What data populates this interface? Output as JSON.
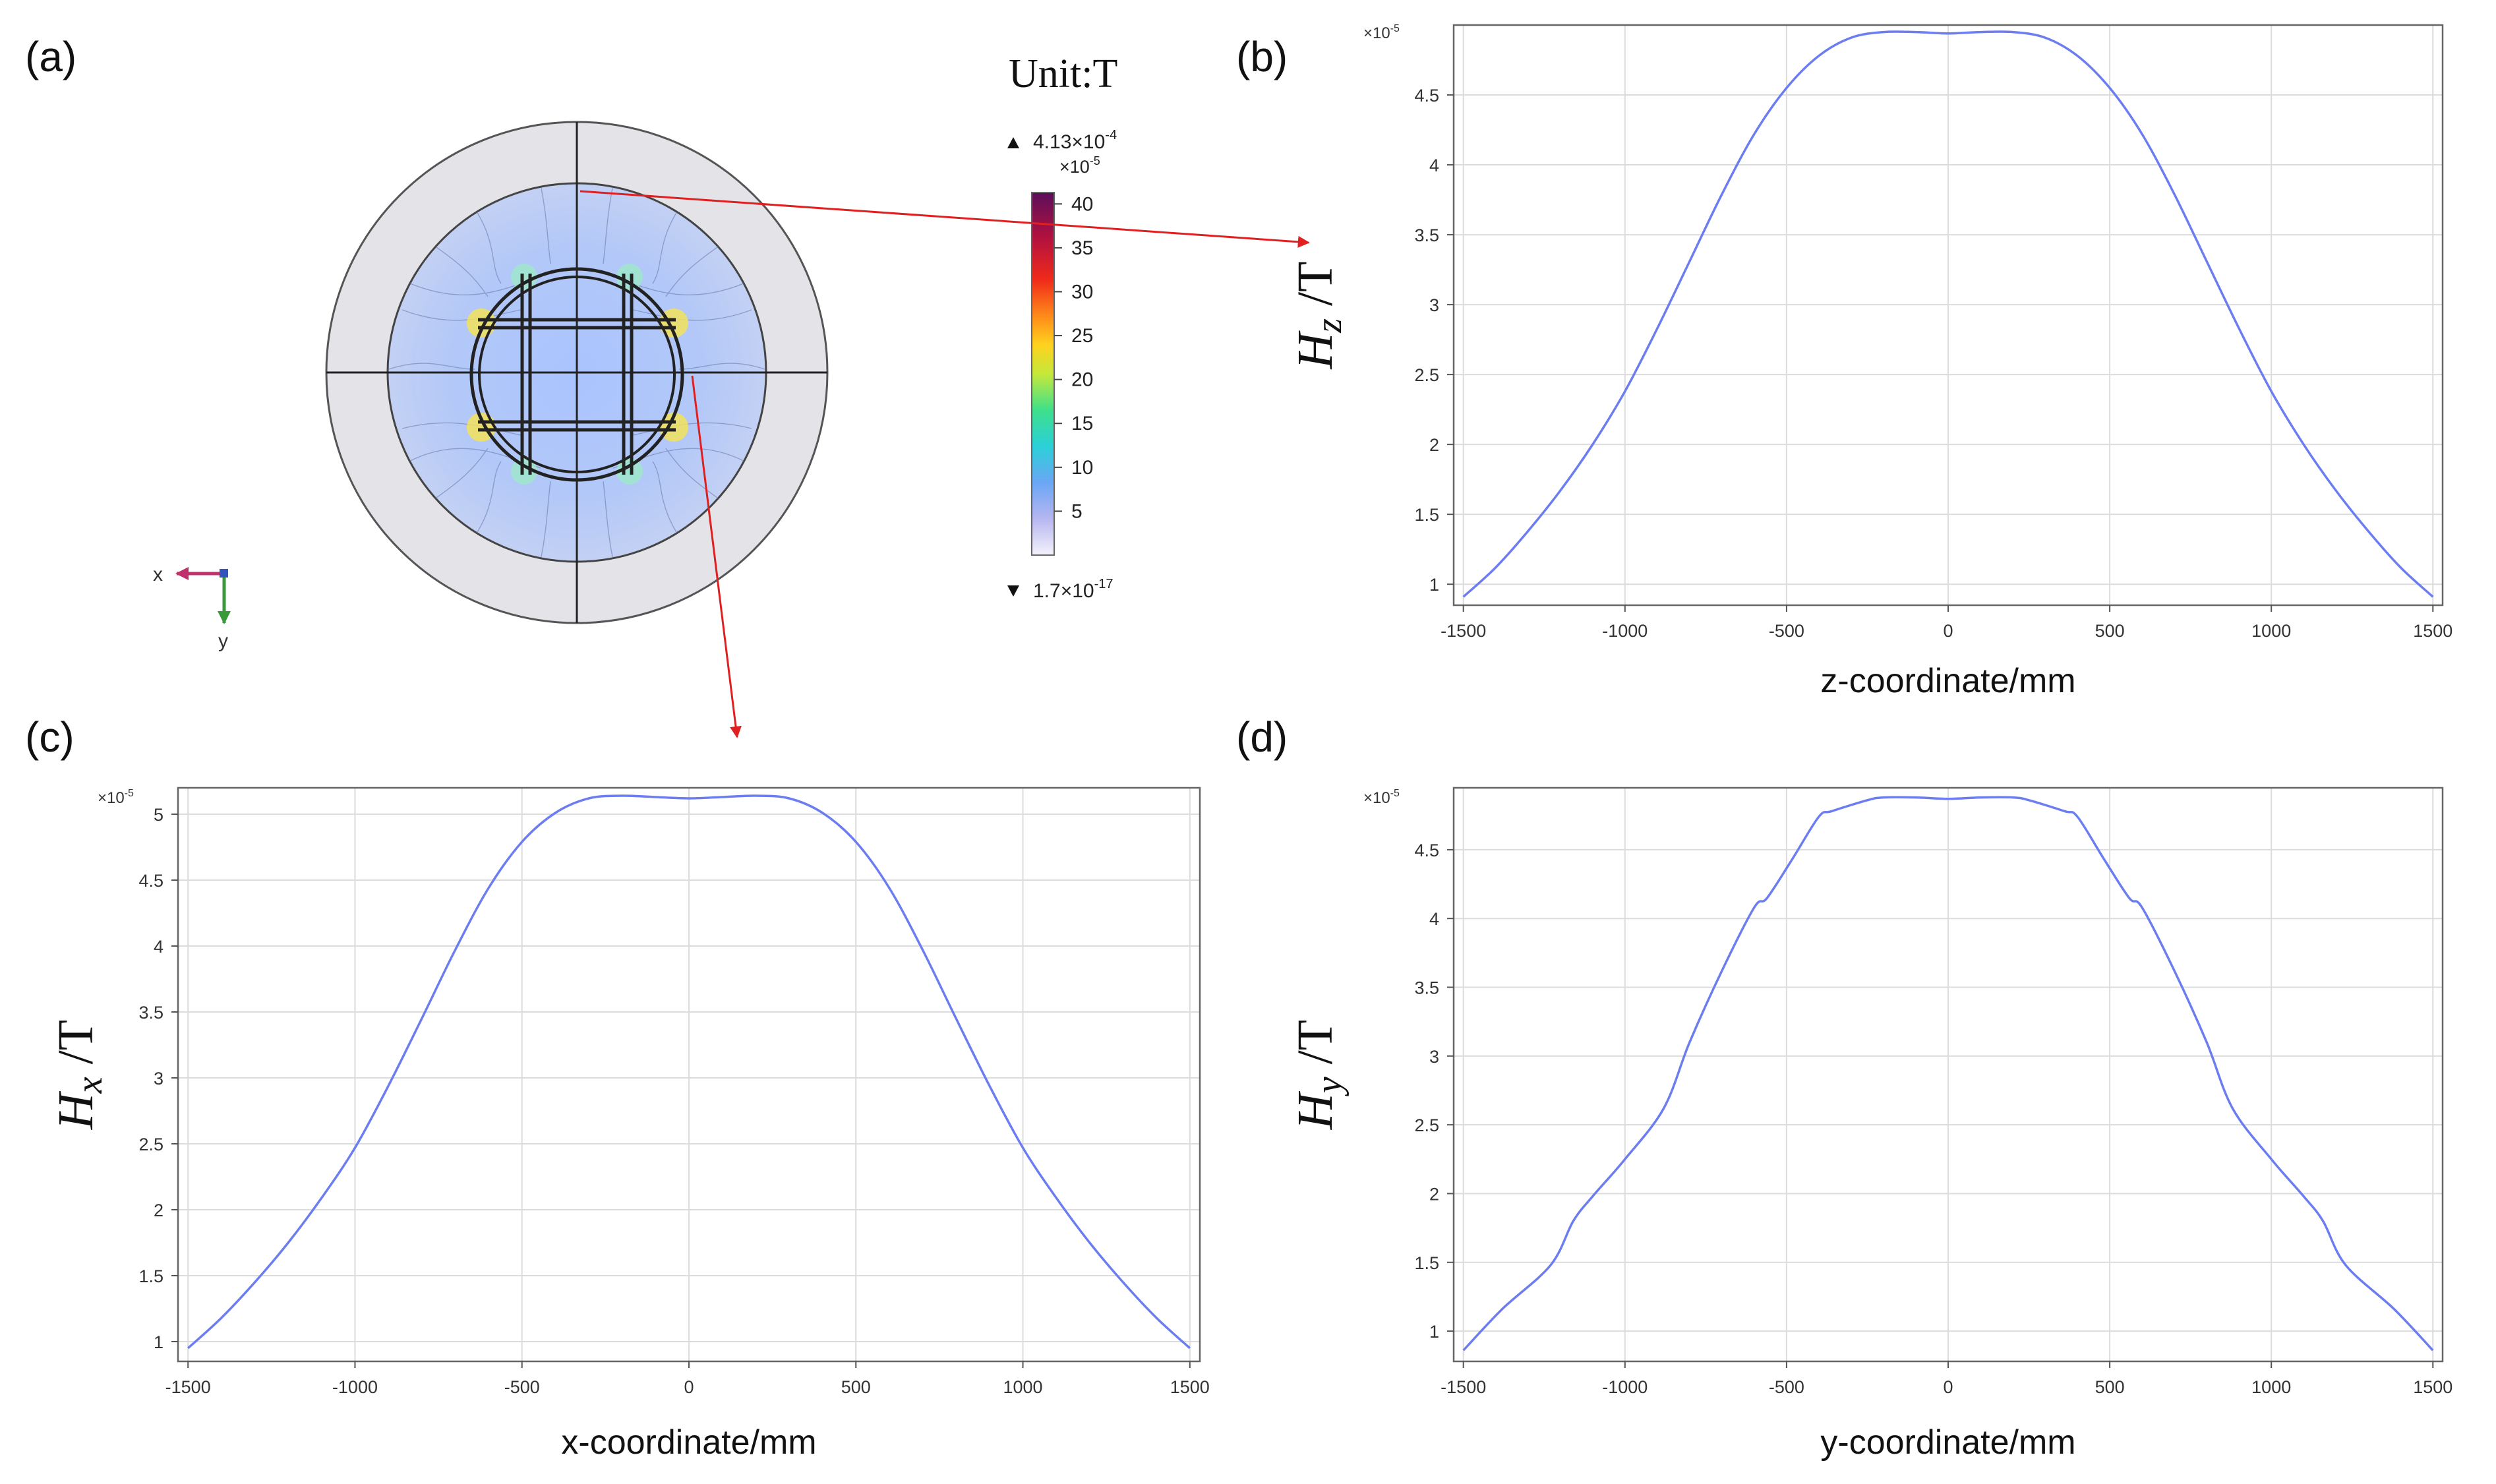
{
  "colors": {
    "curve": "#6b7df0",
    "arrow": "#e02020"
  },
  "panel_a": {
    "label": "(a)",
    "unit_label": "Unit:T",
    "max_value": "4.13×10",
    "max_exp": "-4",
    "min_value": "1.7×10",
    "min_exp": "-17",
    "colorbar_scale": "×10",
    "colorbar_scale_exp": "-5",
    "colorbar_ticks": [
      "40",
      "35",
      "30",
      "25",
      "20",
      "15",
      "10",
      "5"
    ],
    "axis_x": "x",
    "axis_y": "y"
  },
  "chart_data": [
    {
      "id": "b",
      "label": "(b)",
      "type": "line",
      "ylabel_base": "H",
      "ylabel_sub": "z",
      "ylabel_unit": " /T",
      "xlabel": "z-coordinate/mm",
      "scale": "×10",
      "scale_exp": "-5",
      "xlim": [
        -1530,
        1530
      ],
      "ylim": [
        0.85,
        5.0
      ],
      "xticks": [
        -1500,
        -1000,
        -500,
        0,
        500,
        1000,
        1500
      ],
      "yticks": [
        1,
        1.5,
        2,
        2.5,
        3,
        3.5,
        4,
        4.5
      ],
      "ytick_labels": [
        "1",
        "1.5",
        "2",
        "2.5",
        "3",
        "3.5",
        "4",
        "4.5"
      ],
      "x": [
        -1500,
        -1400,
        -1300,
        -1200,
        -1100,
        -1000,
        -900,
        -800,
        -700,
        -600,
        -500,
        -400,
        -300,
        -200,
        -100,
        0,
        100,
        200,
        300,
        400,
        500,
        600,
        700,
        800,
        900,
        1000,
        1100,
        1200,
        1300,
        1400,
        1500
      ],
      "y": [
        0.91,
        1.12,
        1.38,
        1.67,
        2.0,
        2.38,
        2.83,
        3.31,
        3.79,
        4.22,
        4.55,
        4.78,
        4.91,
        4.95,
        4.95,
        4.94,
        4.95,
        4.95,
        4.91,
        4.78,
        4.55,
        4.22,
        3.79,
        3.31,
        2.83,
        2.38,
        2.0,
        1.67,
        1.38,
        1.12,
        0.91
      ]
    },
    {
      "id": "c",
      "label": "(c)",
      "type": "line",
      "ylabel_base": "H",
      "ylabel_sub": "x",
      "ylabel_unit": " /T",
      "xlabel": "x-coordinate/mm",
      "scale": "×10",
      "scale_exp": "-5",
      "xlim": [
        -1530,
        1530
      ],
      "ylim": [
        0.85,
        5.2
      ],
      "xticks": [
        -1500,
        -1000,
        -500,
        0,
        500,
        1000,
        1500
      ],
      "yticks": [
        1,
        1.5,
        2,
        2.5,
        3,
        3.5,
        4,
        4.5,
        5
      ],
      "ytick_labels": [
        "1",
        "1.5",
        "2",
        "2.5",
        "3",
        "3.5",
        "4",
        "4.5",
        "5"
      ],
      "x": [
        -1500,
        -1400,
        -1300,
        -1200,
        -1100,
        -1000,
        -900,
        -800,
        -700,
        -600,
        -500,
        -400,
        -300,
        -200,
        -100,
        0,
        100,
        200,
        300,
        400,
        500,
        600,
        700,
        800,
        900,
        1000,
        1100,
        1200,
        1300,
        1400,
        1500
      ],
      "y": [
        0.95,
        1.18,
        1.45,
        1.75,
        2.09,
        2.47,
        2.94,
        3.45,
        3.97,
        4.44,
        4.79,
        5.01,
        5.12,
        5.14,
        5.13,
        5.12,
        5.13,
        5.14,
        5.12,
        5.01,
        4.79,
        4.44,
        3.97,
        3.45,
        2.94,
        2.47,
        2.09,
        1.75,
        1.45,
        1.18,
        0.95
      ]
    },
    {
      "id": "d",
      "label": "(d)",
      "type": "line",
      "ylabel_base": "H",
      "ylabel_sub": "y",
      "ylabel_unit": " /T",
      "xlabel": "y-coordinate/mm",
      "scale": "×10",
      "scale_exp": "-5",
      "xlim": [
        -1530,
        1530
      ],
      "ylim": [
        0.78,
        4.95
      ],
      "xticks": [
        -1500,
        -1000,
        -500,
        0,
        500,
        1000,
        1500
      ],
      "yticks": [
        1,
        1.5,
        2,
        2.5,
        3,
        3.5,
        4,
        4.5
      ],
      "ytick_labels": [
        "1",
        "1.5",
        "2",
        "2.5",
        "3",
        "3.5",
        "4",
        "4.5"
      ],
      "x": [
        -1500,
        -1380,
        -1230,
        -1160,
        -1100,
        -1000,
        -880,
        -800,
        -700,
        -600,
        -560,
        -480,
        -400,
        -360,
        -250,
        -200,
        -100,
        0,
        100,
        200,
        250,
        360,
        400,
        480,
        560,
        600,
        700,
        800,
        880,
        1000,
        1100,
        1160,
        1230,
        1380,
        1500
      ],
      "y": [
        0.86,
        1.16,
        1.48,
        1.8,
        1.98,
        2.25,
        2.62,
        3.1,
        3.62,
        4.08,
        4.15,
        4.44,
        4.74,
        4.78,
        4.86,
        4.88,
        4.88,
        4.87,
        4.88,
        4.88,
        4.86,
        4.78,
        4.74,
        4.44,
        4.15,
        4.08,
        3.62,
        3.1,
        2.62,
        2.25,
        1.98,
        1.8,
        1.48,
        1.16,
        0.86
      ]
    }
  ]
}
